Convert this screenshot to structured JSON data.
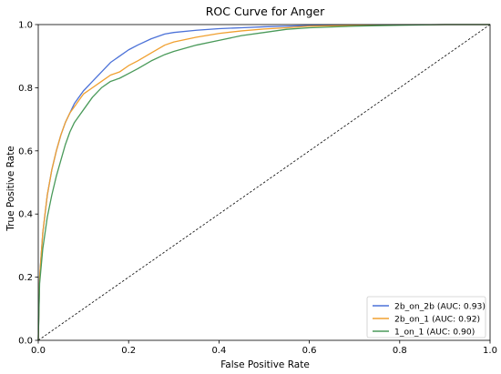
{
  "chart_data": {
    "type": "line",
    "title": "ROC Curve for Anger",
    "xlabel": "False Positive Rate",
    "ylabel": "True Positive Rate",
    "xlim": [
      0,
      1
    ],
    "ylim": [
      0,
      1
    ],
    "xticks": [
      "0.0",
      "0.2",
      "0.4",
      "0.6",
      "0.8",
      "1.0"
    ],
    "yticks": [
      "0.0",
      "0.2",
      "0.4",
      "0.6",
      "0.8",
      "1.0"
    ],
    "grid": false,
    "legend_position": "lower-right",
    "diagonal_reference": true,
    "series": [
      {
        "name": "2b_on_2b (AUC: 0.93)",
        "color": "#4C72D8",
        "x": [
          0,
          0.003,
          0.01,
          0.02,
          0.03,
          0.04,
          0.05,
          0.06,
          0.07,
          0.08,
          0.09,
          0.1,
          0.12,
          0.14,
          0.16,
          0.18,
          0.2,
          0.22,
          0.25,
          0.28,
          0.3,
          0.35,
          0.4,
          0.45,
          0.5,
          0.55,
          0.6,
          0.7,
          0.8,
          0.9,
          1.0
        ],
        "y": [
          0,
          0.2,
          0.34,
          0.46,
          0.54,
          0.6,
          0.65,
          0.69,
          0.72,
          0.75,
          0.77,
          0.79,
          0.82,
          0.85,
          0.88,
          0.9,
          0.92,
          0.935,
          0.955,
          0.97,
          0.975,
          0.982,
          0.987,
          0.99,
          0.993,
          0.995,
          0.997,
          0.998,
          0.999,
          1.0,
          1.0
        ]
      },
      {
        "name": "2b_on_1 (AUC: 0.92)",
        "color": "#F0A030",
        "x": [
          0,
          0.003,
          0.01,
          0.02,
          0.03,
          0.04,
          0.05,
          0.06,
          0.07,
          0.08,
          0.09,
          0.1,
          0.12,
          0.14,
          0.16,
          0.18,
          0.2,
          0.22,
          0.25,
          0.28,
          0.3,
          0.35,
          0.4,
          0.45,
          0.5,
          0.55,
          0.6,
          0.7,
          0.8,
          0.9,
          1.0
        ],
        "y": [
          0,
          0.2,
          0.34,
          0.46,
          0.54,
          0.6,
          0.65,
          0.69,
          0.72,
          0.74,
          0.76,
          0.78,
          0.8,
          0.82,
          0.84,
          0.85,
          0.87,
          0.885,
          0.91,
          0.935,
          0.945,
          0.96,
          0.972,
          0.98,
          0.986,
          0.99,
          0.995,
          0.997,
          0.999,
          1.0,
          1.0
        ]
      },
      {
        "name": "1_on_1 (AUC: 0.90)",
        "color": "#4A9A5A",
        "x": [
          0,
          0.003,
          0.01,
          0.02,
          0.03,
          0.04,
          0.05,
          0.06,
          0.07,
          0.08,
          0.09,
          0.1,
          0.12,
          0.14,
          0.16,
          0.18,
          0.2,
          0.22,
          0.25,
          0.28,
          0.3,
          0.35,
          0.4,
          0.45,
          0.5,
          0.55,
          0.6,
          0.7,
          0.8,
          0.9,
          1.0
        ],
        "y": [
          0,
          0.18,
          0.29,
          0.39,
          0.46,
          0.52,
          0.57,
          0.62,
          0.66,
          0.69,
          0.71,
          0.73,
          0.77,
          0.8,
          0.82,
          0.83,
          0.845,
          0.86,
          0.885,
          0.905,
          0.915,
          0.935,
          0.95,
          0.965,
          0.975,
          0.985,
          0.99,
          0.995,
          0.998,
          1.0,
          1.0
        ]
      }
    ]
  }
}
